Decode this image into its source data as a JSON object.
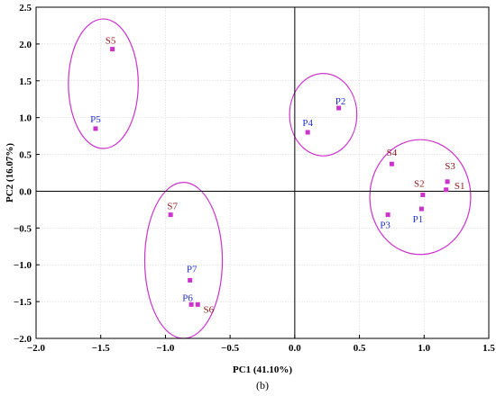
{
  "chart_data": {
    "type": "scatter",
    "xlabel": "PC1 (41.10%)",
    "ylabel": "PC2 (16.07%)",
    "xlim": [
      -2.0,
      1.5
    ],
    "ylim": [
      -2.0,
      2.5
    ],
    "xticks": [
      -2.0,
      -1.5,
      -1.0,
      -0.5,
      0.0,
      0.5,
      1.0,
      1.5
    ],
    "yticks": [
      -2.0,
      -1.5,
      -1.0,
      -0.5,
      0.0,
      0.5,
      1.0,
      1.5,
      2.0,
      2.5
    ],
    "xtick_labels": [
      "−2.0",
      "−1.5",
      "−1.0",
      "−0.5",
      "0.0",
      "0.5",
      "1.0",
      "1.5"
    ],
    "ytick_labels": [
      "−2.0",
      "−1.5",
      "−1.0",
      "−0.5",
      "0.0",
      "0.5",
      "1.0",
      "1.5",
      "2.0",
      "2.5"
    ],
    "grid": true,
    "caption": "(b)",
    "marker_color": "#cc33cc",
    "ellipse_color": "#cc33cc",
    "label_colors": {
      "S": "#8b1a1a",
      "P": "#1f2fd1"
    },
    "points": [
      {
        "label": "S1",
        "x": 1.17,
        "y": 0.02
      },
      {
        "label": "S2",
        "x": 0.99,
        "y": -0.05
      },
      {
        "label": "S3",
        "x": 1.18,
        "y": 0.13
      },
      {
        "label": "S4",
        "x": 0.75,
        "y": 0.37
      },
      {
        "label": "S5",
        "x": -1.41,
        "y": 1.93
      },
      {
        "label": "S6",
        "x": -0.75,
        "y": -1.54
      },
      {
        "label": "S7",
        "x": -0.96,
        "y": -0.32
      },
      {
        "label": "P1",
        "x": 0.98,
        "y": -0.24
      },
      {
        "label": "P2",
        "x": 0.34,
        "y": 1.13
      },
      {
        "label": "P3",
        "x": 0.72,
        "y": -0.32
      },
      {
        "label": "P4",
        "x": 0.1,
        "y": 0.8
      },
      {
        "label": "P5",
        "x": -1.54,
        "y": 0.85
      },
      {
        "label": "P6",
        "x": -0.8,
        "y": -1.54
      },
      {
        "label": "P7",
        "x": -0.81,
        "y": -1.21
      }
    ],
    "ellipses": [
      {
        "group": [
          "S5",
          "P5"
        ],
        "cx": -1.48,
        "cy": 1.46,
        "rx": 0.27,
        "ry": 0.88
      },
      {
        "group": [
          "P2",
          "P4"
        ],
        "cx": 0.22,
        "cy": 1.04,
        "rx": 0.26,
        "ry": 0.56
      },
      {
        "group": [
          "S1",
          "S2",
          "S3",
          "S4",
          "P1",
          "P3"
        ],
        "cx": 0.97,
        "cy": -0.08,
        "rx": 0.39,
        "ry": 0.78
      },
      {
        "group": [
          "S6",
          "S7",
          "P7",
          "P6"
        ],
        "cx": -0.86,
        "cy": -0.94,
        "rx": 0.3,
        "ry": 1.06
      }
    ]
  }
}
